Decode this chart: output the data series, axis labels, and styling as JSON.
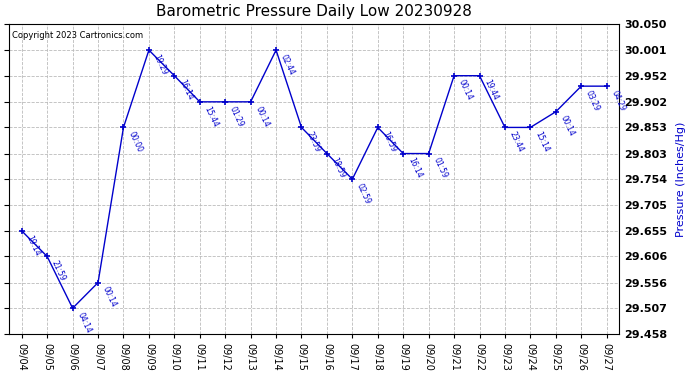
{
  "title": "Barometric Pressure Daily Low 20230928",
  "ylabel": "Pressure (Inches/Hg)",
  "copyright": "Copyright 2023 Cartronics.com",
  "line_color": "#0000cc",
  "background_color": "#ffffff",
  "grid_color": "#bbbbbb",
  "ylim": [
    29.458,
    30.05
  ],
  "yticks": [
    29.458,
    29.507,
    29.556,
    29.606,
    29.655,
    29.705,
    29.754,
    29.803,
    29.853,
    29.902,
    29.952,
    30.001,
    30.05
  ],
  "points": [
    {
      "date": "09/04",
      "time": "19:14",
      "value": 29.655
    },
    {
      "date": "09/05",
      "time": "21:59",
      "value": 29.606
    },
    {
      "date": "09/06",
      "time": "04:14",
      "value": 29.507
    },
    {
      "date": "09/07",
      "time": "00:14",
      "value": 29.556
    },
    {
      "date": "09/08",
      "time": "00:00",
      "value": 29.853
    },
    {
      "date": "09/09",
      "time": "19:29",
      "value": 30.001
    },
    {
      "date": "09/10",
      "time": "16:14",
      "value": 29.952
    },
    {
      "date": "09/11",
      "time": "15:44",
      "value": 29.902
    },
    {
      "date": "09/12",
      "time": "01:29",
      "value": 29.902
    },
    {
      "date": "09/13",
      "time": "00:14",
      "value": 29.902
    },
    {
      "date": "09/14",
      "time": "02:44",
      "value": 30.001
    },
    {
      "date": "09/15",
      "time": "23:59",
      "value": 29.853
    },
    {
      "date": "09/16",
      "time": "18:59",
      "value": 29.803
    },
    {
      "date": "09/17",
      "time": "02:59",
      "value": 29.754
    },
    {
      "date": "09/18",
      "time": "16:59",
      "value": 29.853
    },
    {
      "date": "09/19",
      "time": "16:14",
      "value": 29.803
    },
    {
      "date": "09/20",
      "time": "01:59",
      "value": 29.803
    },
    {
      "date": "09/21",
      "time": "00:14",
      "value": 29.952
    },
    {
      "date": "09/22",
      "time": "19:44",
      "value": 29.952
    },
    {
      "date": "09/23",
      "time": "23:44",
      "value": 29.853
    },
    {
      "date": "09/24",
      "time": "15:14",
      "value": 29.853
    },
    {
      "date": "09/25",
      "time": "00:14",
      "value": 29.883
    },
    {
      "date": "09/26",
      "time": "03:29",
      "value": 29.932
    },
    {
      "date": "09/27",
      "time": "04:29",
      "value": 29.932
    }
  ]
}
